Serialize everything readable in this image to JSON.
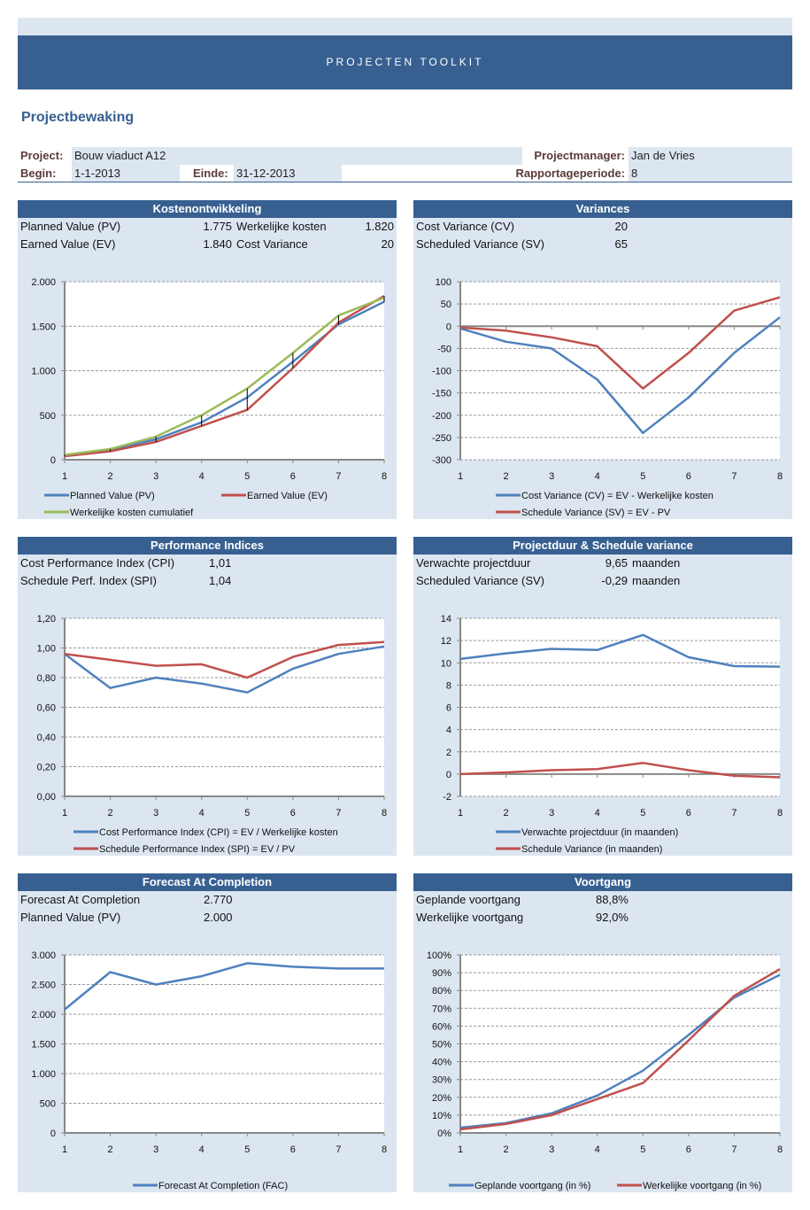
{
  "banner": {
    "title": "PROJECTEN TOOLKIT"
  },
  "page_title": "Projectbewaking",
  "info": {
    "project_label": "Project:",
    "project_value": "Bouw viaduct A12",
    "manager_label": "Projectmanager:",
    "manager_value": "Jan de Vries",
    "begin_label": "Begin:",
    "begin_value": "1-1-2013",
    "end_label": "Einde:",
    "end_value": "31-12-2013",
    "period_label": "Rapportageperiode:",
    "period_value": "8"
  },
  "colors": {
    "header": "#376091",
    "panel": "#dce6f1",
    "blue": "#4f81bd",
    "red": "#c0504d",
    "green": "#9bbb59"
  },
  "panels": {
    "kosten": {
      "title": "Kostenontwikkeling",
      "rows": [
        {
          "label": "Planned Value (PV)",
          "value": "1.775",
          "label2": "Werkelijke kosten",
          "value2": "1.820"
        },
        {
          "label": "Earned Value (EV)",
          "value": "1.840",
          "label2": "Cost Variance",
          "value2": "20"
        }
      ]
    },
    "variances": {
      "title": "Variances",
      "rows": [
        {
          "label": "Cost Variance (CV)",
          "value": "20"
        },
        {
          "label": "Scheduled Variance (SV)",
          "value": "65"
        }
      ]
    },
    "performance": {
      "title": "Performance Indices",
      "rows": [
        {
          "label": "Cost Performance Index (CPI)",
          "value": "1,01"
        },
        {
          "label": "Schedule Perf. Index (SPI)",
          "value": "1,04"
        }
      ]
    },
    "duur": {
      "title": "Projectduur & Schedule variance",
      "rows": [
        {
          "label": "Verwachte projectduur",
          "value": "9,65",
          "unit": "maanden"
        },
        {
          "label": "Scheduled Variance (SV)",
          "value": "-0,29",
          "unit": "maanden"
        }
      ]
    },
    "fac": {
      "title": "Forecast At Completion",
      "rows": [
        {
          "label": "Forecast At Completion",
          "value": "2.770"
        },
        {
          "label": "Planned Value (PV)",
          "value": "2.000"
        }
      ]
    },
    "voortgang": {
      "title": "Voortgang",
      "rows": [
        {
          "label": "Geplande voortgang",
          "value": "88,8%"
        },
        {
          "label": "Werkelijke voortgang",
          "value": "92,0%"
        }
      ]
    }
  },
  "chart_data": [
    {
      "id": "kosten",
      "type": "line",
      "title": "Kostenontwikkeling",
      "x": [
        1,
        2,
        3,
        4,
        5,
        6,
        7,
        8
      ],
      "ylim": [
        0,
        2000
      ],
      "yticks": [
        0,
        500,
        1000,
        1500,
        2000
      ],
      "ytick_labels": [
        "0",
        "500",
        "1.000",
        "1.500",
        "2.000"
      ],
      "grid": true,
      "legend": "bottom",
      "drop_lines": true,
      "series": [
        {
          "name": "Planned Value (PV)",
          "color": "#4f81bd",
          "values": [
            40,
            110,
            230,
            420,
            700,
            1100,
            1520,
            1775
          ]
        },
        {
          "name": "Earned Value (EV)",
          "color": "#c0504d",
          "values": [
            40,
            95,
            200,
            380,
            560,
            1030,
            1540,
            1840
          ]
        },
        {
          "name": "Werkelijke kosten cumulatief",
          "color": "#9bbb59",
          "values": [
            55,
            120,
            260,
            500,
            800,
            1200,
            1620,
            1820
          ]
        }
      ]
    },
    {
      "id": "variances",
      "type": "line",
      "title": "Variances",
      "x": [
        1,
        2,
        3,
        4,
        5,
        6,
        7,
        8
      ],
      "ylim": [
        -300,
        100
      ],
      "yticks": [
        -300,
        -250,
        -200,
        -150,
        -100,
        -50,
        0,
        50,
        100
      ],
      "ytick_labels": [
        "-300",
        "-250",
        "-200",
        "-150",
        "-100",
        "-50",
        "0",
        "50",
        "100"
      ],
      "grid": true,
      "legend": "bottom",
      "series": [
        {
          "name": "Cost Variance (CV) = EV - Werkelijke kosten",
          "color": "#4f81bd",
          "values": [
            -5,
            -35,
            -50,
            -120,
            -240,
            -160,
            -60,
            20
          ]
        },
        {
          "name": "Schedule Variance (SV) = EV - PV",
          "color": "#c0504d",
          "values": [
            -3,
            -10,
            -25,
            -45,
            -140,
            -60,
            35,
            65
          ]
        }
      ]
    },
    {
      "id": "performance",
      "type": "line",
      "title": "Performance Indices",
      "x": [
        1,
        2,
        3,
        4,
        5,
        6,
        7,
        8
      ],
      "ylim": [
        0,
        1.2
      ],
      "yticks": [
        0,
        0.2,
        0.4,
        0.6,
        0.8,
        1.0,
        1.2
      ],
      "ytick_labels": [
        "0,00",
        "0,20",
        "0,40",
        "0,60",
        "0,80",
        "1,00",
        "1,20"
      ],
      "grid": true,
      "legend": "bottom",
      "series": [
        {
          "name": "Cost Performance Index (CPI) = EV / Werkelijke kosten",
          "color": "#4f81bd",
          "values": [
            0.96,
            0.73,
            0.8,
            0.76,
            0.7,
            0.86,
            0.96,
            1.01
          ]
        },
        {
          "name": "Schedule Performance Index (SPI) = EV / PV",
          "color": "#c0504d",
          "values": [
            0.96,
            0.92,
            0.88,
            0.89,
            0.8,
            0.94,
            1.02,
            1.04
          ]
        }
      ]
    },
    {
      "id": "duur",
      "type": "line",
      "title": "Projectduur & Schedule variance",
      "x": [
        1,
        2,
        3,
        4,
        5,
        6,
        7,
        8
      ],
      "ylim": [
        -2,
        14
      ],
      "yticks": [
        -2,
        0,
        2,
        4,
        6,
        8,
        10,
        12,
        14
      ],
      "ytick_labels": [
        "-2",
        "0",
        "2",
        "4",
        "6",
        "8",
        "10",
        "12",
        "14"
      ],
      "grid": true,
      "legend": "bottom",
      "series": [
        {
          "name": "Verwachte projectduur (in maanden)",
          "color": "#4f81bd",
          "values": [
            10.35,
            10.85,
            11.25,
            11.15,
            12.5,
            10.5,
            9.7,
            9.65
          ]
        },
        {
          "name": "Schedule Variance (in maanden)",
          "color": "#c0504d",
          "values": [
            0,
            0.15,
            0.35,
            0.45,
            1.0,
            0.35,
            -0.15,
            -0.29
          ]
        }
      ]
    },
    {
      "id": "fac",
      "type": "line",
      "title": "Forecast At Completion",
      "x": [
        1,
        2,
        3,
        4,
        5,
        6,
        7,
        8
      ],
      "ylim": [
        0,
        3000
      ],
      "yticks": [
        0,
        500,
        1000,
        1500,
        2000,
        2500,
        3000
      ],
      "ytick_labels": [
        "0",
        "500",
        "1.000",
        "1.500",
        "2.000",
        "2.500",
        "3.000"
      ],
      "grid": true,
      "legend": "bottom",
      "series": [
        {
          "name": "Forecast At Completion (FAC)",
          "color": "#4f81bd",
          "values": [
            2080,
            2710,
            2500,
            2640,
            2860,
            2800,
            2770,
            2770
          ]
        }
      ]
    },
    {
      "id": "voortgang",
      "type": "line",
      "title": "Voortgang",
      "x": [
        1,
        2,
        3,
        4,
        5,
        6,
        7,
        8
      ],
      "ylim": [
        0,
        100
      ],
      "yticks": [
        0,
        10,
        20,
        30,
        40,
        50,
        60,
        70,
        80,
        90,
        100
      ],
      "ytick_labels": [
        "0%",
        "10%",
        "20%",
        "30%",
        "40%",
        "50%",
        "60%",
        "70%",
        "80%",
        "90%",
        "100%"
      ],
      "grid": true,
      "legend": "bottom",
      "series": [
        {
          "name": "Geplande voortgang (in %)",
          "color": "#4f81bd",
          "values": [
            3,
            5.5,
            11,
            21,
            35,
            55,
            76,
            88.8
          ]
        },
        {
          "name": "Werkelijke voortgang (in %)",
          "color": "#c0504d",
          "values": [
            2,
            5,
            10,
            19,
            28,
            52,
            77,
            92
          ]
        }
      ]
    }
  ]
}
